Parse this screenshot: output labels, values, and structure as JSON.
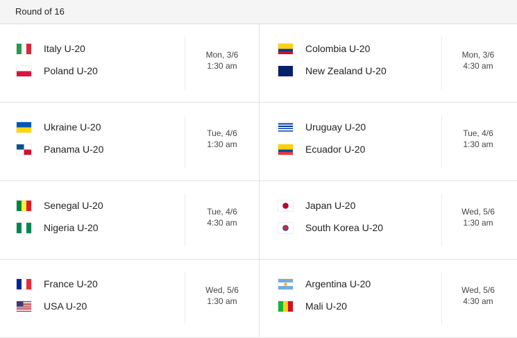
{
  "header": {
    "title": "Round of 16"
  },
  "matches": [
    {
      "home": "Italy U-20",
      "home_flag": "italy",
      "away": "Poland U-20",
      "away_flag": "poland",
      "date": "Mon, 3/6",
      "time": "1:30 am"
    },
    {
      "home": "Colombia U-20",
      "home_flag": "colombia",
      "away": "New Zealand U-20",
      "away_flag": "new-zealand",
      "date": "Mon, 3/6",
      "time": "4:30 am"
    },
    {
      "home": "Ukraine U-20",
      "home_flag": "ukraine",
      "away": "Panama U-20",
      "away_flag": "panama",
      "date": "Tue, 4/6",
      "time": "1:30 am"
    },
    {
      "home": "Uruguay U-20",
      "home_flag": "uruguay",
      "away": "Ecuador U-20",
      "away_flag": "ecuador",
      "date": "Tue, 4/6",
      "time": "1:30 am"
    },
    {
      "home": "Senegal U-20",
      "home_flag": "senegal",
      "away": "Nigeria U-20",
      "away_flag": "nigeria",
      "date": "Tue, 4/6",
      "time": "4:30 am"
    },
    {
      "home": "Japan U-20",
      "home_flag": "japan",
      "away": "South Korea U-20",
      "away_flag": "south-korea",
      "date": "Wed, 5/6",
      "time": "1:30 am"
    },
    {
      "home": "France U-20",
      "home_flag": "france",
      "away": "USA U-20",
      "away_flag": "usa",
      "date": "Wed, 5/6",
      "time": "1:30 am"
    },
    {
      "home": "Argentina U-20",
      "home_flag": "argentina",
      "away": "Mali U-20",
      "away_flag": "mali",
      "date": "Wed, 5/6",
      "time": "4:30 am"
    }
  ]
}
